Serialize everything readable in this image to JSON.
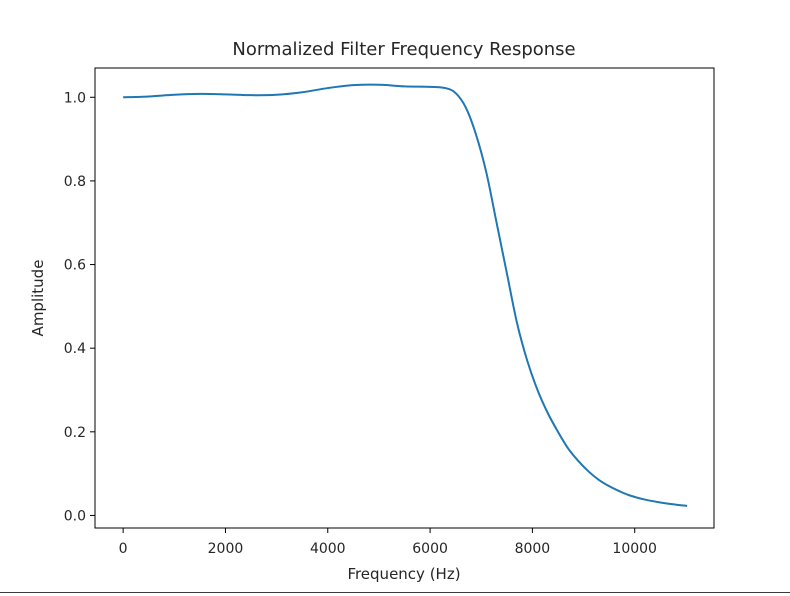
{
  "chart_data": {
    "type": "line",
    "title": "Normalized Filter Frequency Response",
    "xlabel": "Frequency (Hz)",
    "ylabel": "Amplitude",
    "xlim": [
      -550,
      11550
    ],
    "ylim": [
      -0.03,
      1.07
    ],
    "xticks": [
      0,
      2000,
      4000,
      6000,
      8000,
      10000
    ],
    "xtick_labels": [
      "0",
      "2000",
      "4000",
      "6000",
      "8000",
      "10000"
    ],
    "yticks": [
      0.0,
      0.2,
      0.4,
      0.6,
      0.8,
      1.0
    ],
    "ytick_labels": [
      "0.0",
      "0.2",
      "0.4",
      "0.6",
      "0.8",
      "1.0"
    ],
    "grid": false,
    "series": [
      {
        "color": "#1f77b4",
        "x": [
          0,
          500,
          1000,
          1500,
          2000,
          2500,
          3000,
          3500,
          4000,
          4500,
          5000,
          5500,
          6000,
          6300,
          6500,
          6700,
          6900,
          7100,
          7300,
          7500,
          7700,
          7900,
          8100,
          8300,
          8500,
          8700,
          8900,
          9100,
          9300,
          9500,
          9700,
          9900,
          10200,
          10500,
          10800,
          11025
        ],
        "y": [
          1.0,
          1.002,
          1.006,
          1.008,
          1.007,
          1.005,
          1.006,
          1.012,
          1.022,
          1.029,
          1.03,
          1.026,
          1.025,
          1.022,
          1.01,
          0.975,
          0.91,
          0.82,
          0.7,
          0.58,
          0.46,
          0.37,
          0.3,
          0.245,
          0.2,
          0.16,
          0.13,
          0.105,
          0.085,
          0.07,
          0.058,
          0.048,
          0.038,
          0.031,
          0.026,
          0.023
        ]
      }
    ]
  }
}
